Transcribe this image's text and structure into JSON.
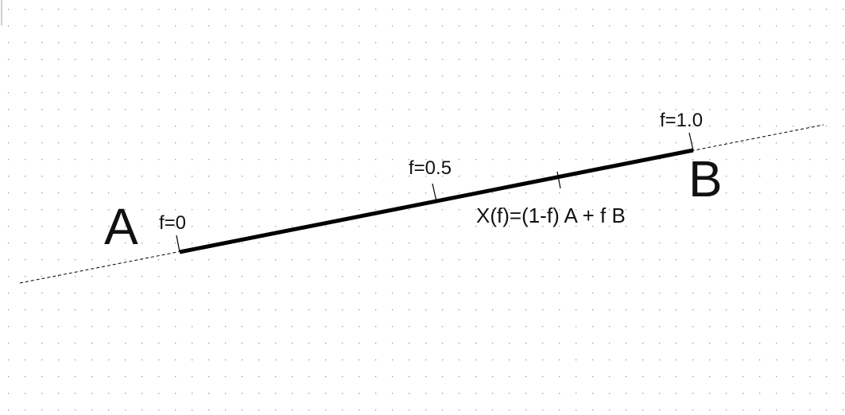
{
  "colors": {
    "background": "#ffffff",
    "grid_dot": "#9a9a9a",
    "line": "#000000",
    "text": "#111111"
  },
  "diagram": {
    "point_a_label": "A",
    "point_b_label": "B",
    "tick_f0_label": "f=0",
    "tick_f05_label": "f=0.5",
    "tick_f1_label": "f=1.0",
    "formula": "X(f)=(1-f) A + f B"
  }
}
